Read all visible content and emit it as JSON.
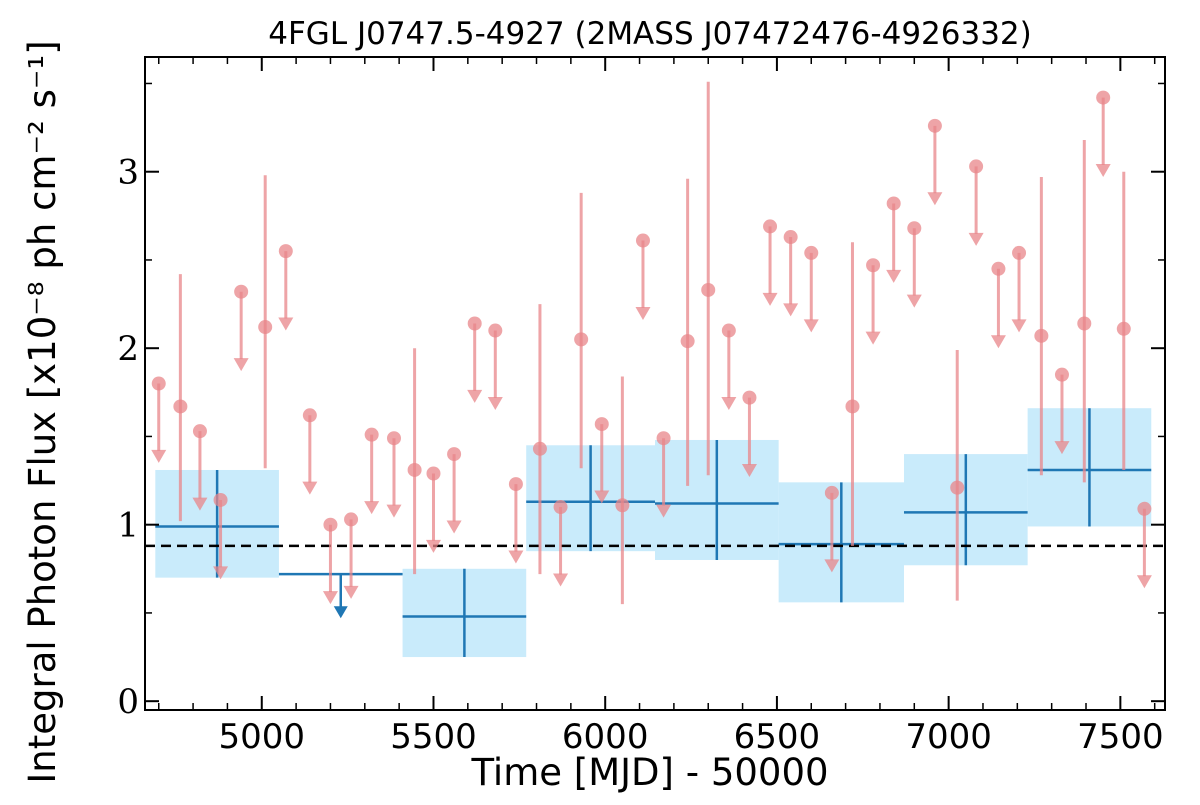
{
  "chart_data": {
    "type": "scatter",
    "title": "4FGL J0747.5-4927 (2MASS J07472476-4926332)",
    "xlabel": "Time [MJD] - 50000",
    "ylabel": "Integral Photon Flux [x10⁻⁸ ph cm⁻² s⁻¹]",
    "xlim": [
      4660,
      7630
    ],
    "ylim": [
      -0.05,
      3.65
    ],
    "x_ticks": [
      5000,
      5500,
      6000,
      6500,
      7000,
      7500
    ],
    "x_tick_labels": [
      "5000",
      "5500",
      "6000",
      "6500",
      "7000",
      "7500"
    ],
    "y_ticks": [
      0,
      1,
      2,
      3
    ],
    "y_tick_labels": [
      "0",
      "1",
      "2",
      "3"
    ],
    "grid": false,
    "mean_flux": 0.88,
    "colors": {
      "short_bins": "#e8868a",
      "long_bins": "#1f77b4",
      "long_bins_band": "#c9ebfb",
      "mean_line": "#000000"
    },
    "series": [
      {
        "points": [
          {
            "x": 4700,
            "y": 1.8,
            "upper_limit": true
          },
          {
            "x": 4763,
            "y": 1.67,
            "lo": 1.02,
            "hi": 2.42
          },
          {
            "x": 4820,
            "y": 1.53,
            "upper_limit": true
          },
          {
            "x": 4880,
            "y": 1.14,
            "upper_limit": true
          },
          {
            "x": 4940,
            "y": 2.32,
            "upper_limit": true
          },
          {
            "x": 5010,
            "y": 2.12,
            "lo": 1.32,
            "hi": 2.98
          },
          {
            "x": 5070,
            "y": 2.55,
            "upper_limit": true
          },
          {
            "x": 5140,
            "y": 1.62,
            "upper_limit": true
          },
          {
            "x": 5200,
            "y": 1.0,
            "upper_limit": true
          },
          {
            "x": 5260,
            "y": 1.03,
            "upper_limit": true
          },
          {
            "x": 5320,
            "y": 1.51,
            "upper_limit": true
          },
          {
            "x": 5385,
            "y": 1.49,
            "upper_limit": true
          },
          {
            "x": 5445,
            "y": 1.31,
            "lo": 0.72,
            "hi": 2.0
          },
          {
            "x": 5500,
            "y": 1.29,
            "upper_limit": true
          },
          {
            "x": 5560,
            "y": 1.4,
            "upper_limit": true
          },
          {
            "x": 5620,
            "y": 2.14,
            "upper_limit": true
          },
          {
            "x": 5680,
            "y": 2.1,
            "upper_limit": true
          },
          {
            "x": 5740,
            "y": 1.23,
            "upper_limit": true
          },
          {
            "x": 5810,
            "y": 1.43,
            "lo": 0.72,
            "hi": 2.25
          },
          {
            "x": 5870,
            "y": 1.1,
            "upper_limit": true
          },
          {
            "x": 5930,
            "y": 2.05,
            "lo": 1.32,
            "hi": 2.88
          },
          {
            "x": 5990,
            "y": 1.57,
            "upper_limit": true
          },
          {
            "x": 6050,
            "y": 1.11,
            "lo": 0.55,
            "hi": 1.84
          },
          {
            "x": 6110,
            "y": 2.61,
            "upper_limit": true
          },
          {
            "x": 6170,
            "y": 1.49,
            "upper_limit": true
          },
          {
            "x": 6240,
            "y": 2.04,
            "lo": 1.22,
            "hi": 2.96
          },
          {
            "x": 6300,
            "y": 2.33,
            "lo": 1.28,
            "hi": 3.51
          },
          {
            "x": 6360,
            "y": 2.1,
            "upper_limit": true
          },
          {
            "x": 6420,
            "y": 1.72,
            "upper_limit": true
          },
          {
            "x": 6480,
            "y": 2.69,
            "upper_limit": true
          },
          {
            "x": 6540,
            "y": 2.63,
            "upper_limit": true
          },
          {
            "x": 6600,
            "y": 2.54,
            "upper_limit": true
          },
          {
            "x": 6660,
            "y": 1.18,
            "upper_limit": true
          },
          {
            "x": 6720,
            "y": 1.67,
            "lo": 0.88,
            "hi": 2.6
          },
          {
            "x": 6780,
            "y": 2.47,
            "upper_limit": true
          },
          {
            "x": 6840,
            "y": 2.82,
            "upper_limit": true
          },
          {
            "x": 6900,
            "y": 2.68,
            "upper_limit": true
          },
          {
            "x": 6960,
            "y": 3.26,
            "upper_limit": true
          },
          {
            "x": 7025,
            "y": 1.21,
            "lo": 0.57,
            "hi": 1.99
          },
          {
            "x": 7080,
            "y": 3.03,
            "upper_limit": true
          },
          {
            "x": 7145,
            "y": 2.45,
            "upper_limit": true
          },
          {
            "x": 7205,
            "y": 2.54,
            "upper_limit": true
          },
          {
            "x": 7270,
            "y": 2.07,
            "lo": 1.28,
            "hi": 2.97
          },
          {
            "x": 7330,
            "y": 1.85,
            "upper_limit": true
          },
          {
            "x": 7395,
            "y": 2.14,
            "lo": 1.24,
            "hi": 3.18
          },
          {
            "x": 7450,
            "y": 3.42,
            "upper_limit": true
          },
          {
            "x": 7510,
            "y": 2.11,
            "lo": 1.31,
            "hi": 3.0
          },
          {
            "x": 7570,
            "y": 1.09,
            "upper_limit": true
          }
        ]
      },
      {
        "bins": [
          {
            "x0": 4690,
            "x1": 5050,
            "y": 0.99,
            "lo": 0.7,
            "hi": 1.31,
            "upper_limit": false
          },
          {
            "x0": 5050,
            "x1": 5410,
            "y": 0.72,
            "upper_limit": true
          },
          {
            "x0": 5410,
            "x1": 5770,
            "y": 0.48,
            "lo": 0.25,
            "hi": 0.75,
            "upper_limit": false
          },
          {
            "x0": 5770,
            "x1": 6145,
            "y": 1.13,
            "lo": 0.85,
            "hi": 1.45,
            "upper_limit": false
          },
          {
            "x0": 6145,
            "x1": 6505,
            "y": 1.12,
            "lo": 0.8,
            "hi": 1.48,
            "upper_limit": false
          },
          {
            "x0": 6505,
            "x1": 6870,
            "y": 0.89,
            "lo": 0.56,
            "hi": 1.24,
            "upper_limit": false
          },
          {
            "x0": 6870,
            "x1": 7230,
            "y": 1.07,
            "lo": 0.77,
            "hi": 1.4,
            "upper_limit": false
          },
          {
            "x0": 7230,
            "x1": 7590,
            "y": 1.31,
            "lo": 0.99,
            "hi": 1.66,
            "upper_limit": false
          }
        ]
      }
    ]
  }
}
